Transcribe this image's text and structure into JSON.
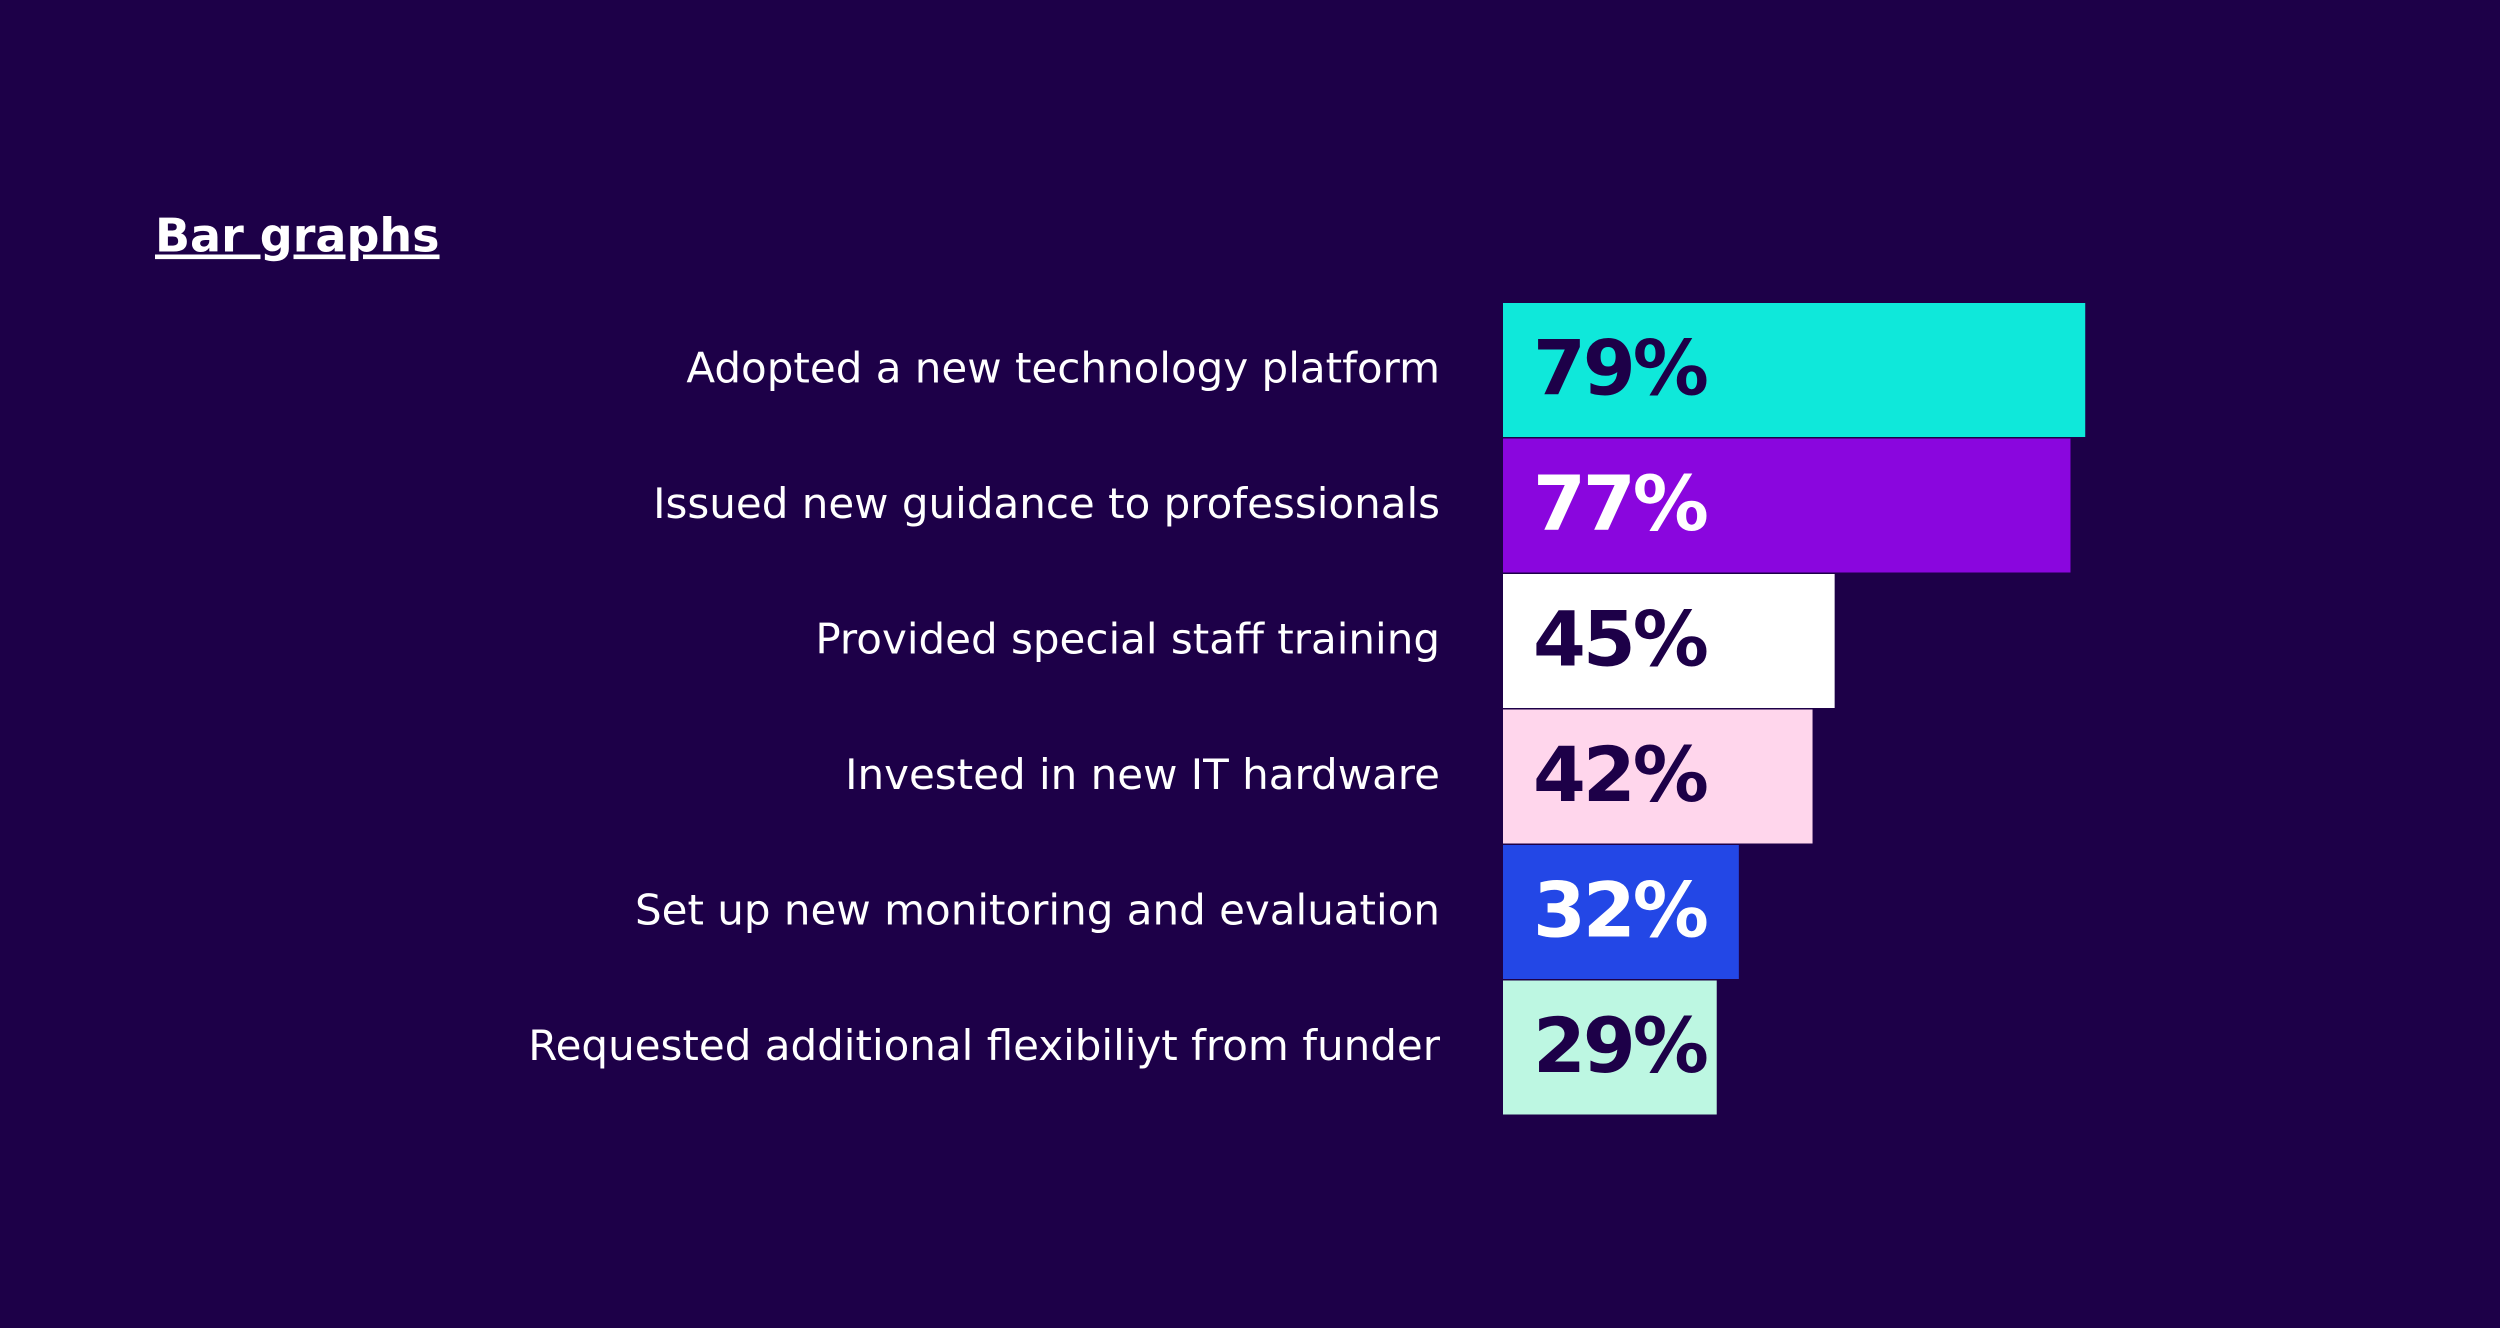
{
  "chart_data": {
    "type": "bar",
    "orientation": "horizontal",
    "title": "Bar graphs",
    "categories": [
      "Adopted a new technology platform",
      "Issued new guidance to professionals",
      "Provided special staff training",
      "Invested in new IT hardware",
      "Set up new monitoring and evaluation",
      "Requested additional flexibiliyt from funder"
    ],
    "values": [
      79,
      77,
      45,
      42,
      32,
      29
    ],
    "value_labels": [
      "79%",
      "77%",
      "45%",
      "42%",
      "32%",
      "29%"
    ],
    "colors": [
      "#0fe8da",
      "#8a06de",
      "#ffffff",
      "#ffd6ec",
      "#2347e6",
      "#bdf7e2"
    ],
    "label_colors": [
      "#1d0048",
      "#ffffff",
      "#1d0048",
      "#1d0048",
      "#ffffff",
      "#1d0048"
    ]
  }
}
